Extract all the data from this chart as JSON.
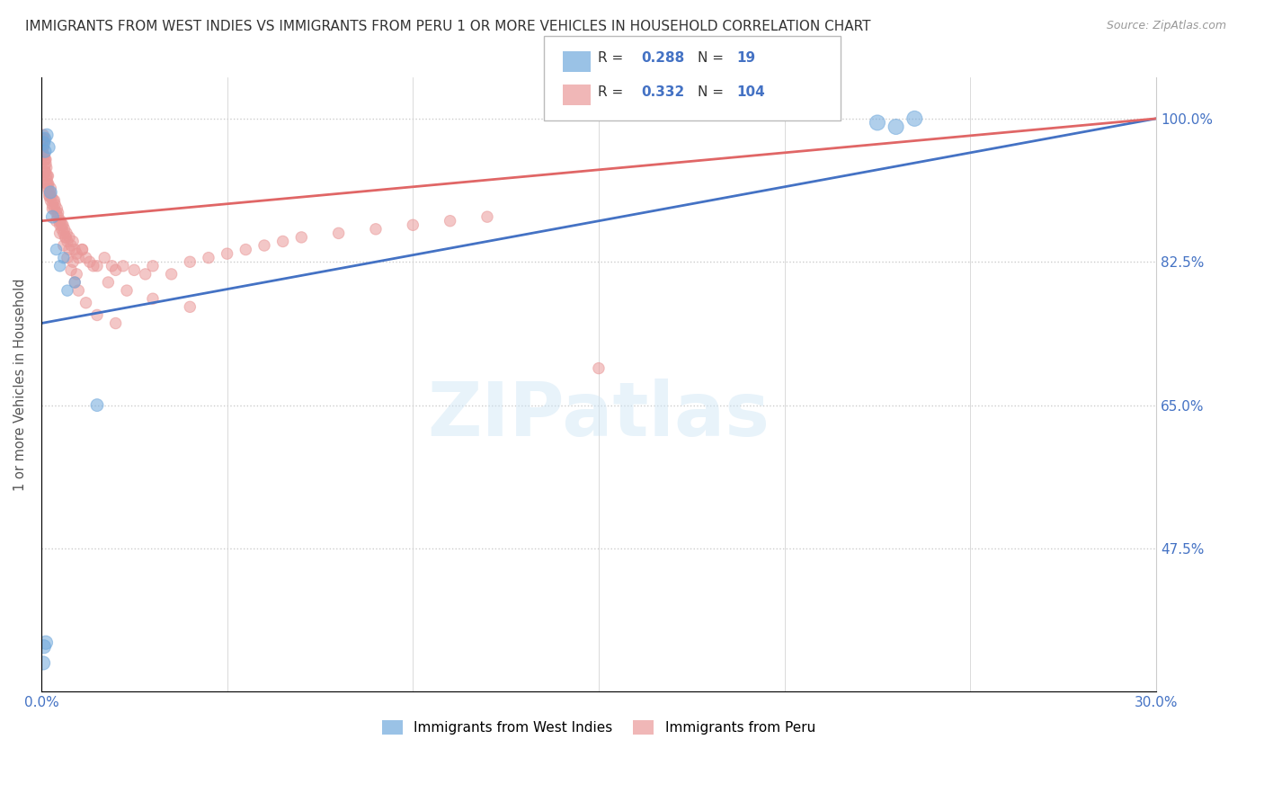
{
  "title": "IMMIGRANTS FROM WEST INDIES VS IMMIGRANTS FROM PERU 1 OR MORE VEHICLES IN HOUSEHOLD CORRELATION CHART",
  "source": "Source: ZipAtlas.com",
  "ylabel": "1 or more Vehicles in Household",
  "xlim": [
    0.0,
    30.0
  ],
  "ylim": [
    30.0,
    105.0
  ],
  "yticks": [
    47.5,
    65.0,
    82.5,
    100.0
  ],
  "xticks": [
    0.0,
    5.0,
    10.0,
    15.0,
    20.0,
    25.0,
    30.0
  ],
  "xtick_labels": [
    "0.0%",
    "",
    "",
    "",
    "",
    "",
    "30.0%"
  ],
  "ytick_labels": [
    "47.5%",
    "65.0%",
    "82.5%",
    "100.0%"
  ],
  "west_indies_color": "#6fa8dc",
  "peru_color": "#ea9999",
  "west_indies_line_color": "#4472c4",
  "peru_line_color": "#e06666",
  "west_indies_R": 0.288,
  "west_indies_N": 19,
  "peru_R": 0.332,
  "peru_N": 104,
  "legend_west_indies": "Immigrants from West Indies",
  "legend_peru": "Immigrants from Peru",
  "watermark": "ZIPatlas",
  "wi_line_x0": 0.0,
  "wi_line_y0": 75.0,
  "wi_line_x1": 30.0,
  "wi_line_y1": 100.0,
  "peru_line_x0": 0.0,
  "peru_line_y0": 87.5,
  "peru_line_x1": 30.0,
  "peru_line_y1": 100.0,
  "west_indies_x": [
    0.05,
    0.08,
    0.1,
    0.15,
    0.2,
    0.25,
    0.3,
    0.4,
    0.5,
    0.6,
    0.7,
    0.9,
    1.5,
    0.05,
    0.07,
    0.12,
    22.5,
    23.0,
    23.5
  ],
  "west_indies_y": [
    97.0,
    97.5,
    96.0,
    98.0,
    96.5,
    91.0,
    88.0,
    84.0,
    82.0,
    83.0,
    79.0,
    80.0,
    65.0,
    33.5,
    35.5,
    36.0,
    99.5,
    99.0,
    100.0
  ],
  "west_indies_sizes": [
    120,
    120,
    100,
    100,
    100,
    100,
    100,
    80,
    80,
    80,
    80,
    80,
    100,
    120,
    120,
    120,
    150,
    150,
    150
  ],
  "peru_x": [
    0.02,
    0.03,
    0.04,
    0.05,
    0.06,
    0.07,
    0.08,
    0.09,
    0.1,
    0.11,
    0.12,
    0.13,
    0.14,
    0.15,
    0.16,
    0.17,
    0.18,
    0.19,
    0.2,
    0.22,
    0.24,
    0.25,
    0.27,
    0.3,
    0.32,
    0.35,
    0.37,
    0.4,
    0.42,
    0.45,
    0.48,
    0.5,
    0.52,
    0.55,
    0.58,
    0.6,
    0.62,
    0.65,
    0.68,
    0.7,
    0.75,
    0.8,
    0.85,
    0.9,
    0.95,
    1.0,
    1.1,
    1.2,
    1.3,
    1.5,
    1.7,
    1.9,
    2.0,
    2.2,
    2.5,
    2.8,
    3.0,
    3.5,
    4.0,
    4.5,
    5.0,
    5.5,
    6.0,
    6.5,
    7.0,
    8.0,
    9.0,
    10.0,
    11.0,
    12.0,
    0.08,
    0.12,
    0.18,
    0.25,
    0.35,
    0.45,
    0.55,
    0.65,
    0.75,
    0.85,
    0.95,
    1.1,
    1.4,
    1.8,
    2.3,
    3.0,
    4.0,
    0.04,
    0.07,
    0.1,
    0.15,
    0.22,
    0.3,
    0.4,
    0.5,
    0.6,
    0.7,
    0.8,
    0.9,
    1.0,
    1.2,
    1.5,
    2.0,
    15.0
  ],
  "peru_y": [
    96.0,
    97.0,
    97.5,
    98.0,
    96.5,
    95.0,
    95.5,
    94.0,
    95.0,
    93.5,
    94.5,
    93.0,
    94.0,
    92.5,
    93.0,
    92.0,
    91.5,
    92.0,
    91.0,
    90.5,
    91.0,
    90.0,
    90.5,
    89.5,
    90.0,
    89.0,
    89.5,
    88.5,
    89.0,
    88.0,
    87.5,
    87.0,
    87.5,
    86.5,
    87.0,
    86.0,
    86.5,
    85.5,
    86.0,
    85.0,
    85.5,
    84.5,
    85.0,
    84.0,
    83.5,
    83.0,
    84.0,
    83.0,
    82.5,
    82.0,
    83.0,
    82.0,
    81.5,
    82.0,
    81.5,
    81.0,
    82.0,
    81.0,
    82.5,
    83.0,
    83.5,
    84.0,
    84.5,
    85.0,
    85.5,
    86.0,
    86.5,
    87.0,
    87.5,
    88.0,
    97.5,
    95.0,
    93.0,
    91.5,
    90.0,
    88.5,
    87.0,
    85.5,
    84.0,
    82.5,
    81.0,
    84.0,
    82.0,
    80.0,
    79.0,
    78.0,
    77.0,
    96.5,
    95.5,
    93.5,
    92.0,
    90.5,
    89.0,
    87.5,
    86.0,
    84.5,
    83.0,
    81.5,
    80.0,
    79.0,
    77.5,
    76.0,
    75.0,
    69.5
  ],
  "peru_sizes": [
    80,
    80,
    80,
    80,
    80,
    80,
    80,
    80,
    80,
    80,
    80,
    80,
    80,
    80,
    80,
    80,
    80,
    80,
    80,
    80,
    80,
    80,
    80,
    80,
    80,
    80,
    80,
    80,
    80,
    80,
    80,
    80,
    80,
    80,
    80,
    80,
    80,
    80,
    80,
    80,
    80,
    80,
    80,
    80,
    80,
    80,
    80,
    80,
    80,
    80,
    80,
    80,
    80,
    80,
    80,
    80,
    80,
    80,
    80,
    80,
    80,
    80,
    80,
    80,
    80,
    80,
    80,
    80,
    80,
    80,
    80,
    80,
    80,
    80,
    80,
    80,
    80,
    80,
    80,
    80,
    80,
    80,
    80,
    80,
    80,
    80,
    80,
    80,
    80,
    80,
    80,
    80,
    80,
    80,
    80,
    80,
    80,
    80,
    80,
    80,
    80,
    80,
    80,
    80
  ]
}
